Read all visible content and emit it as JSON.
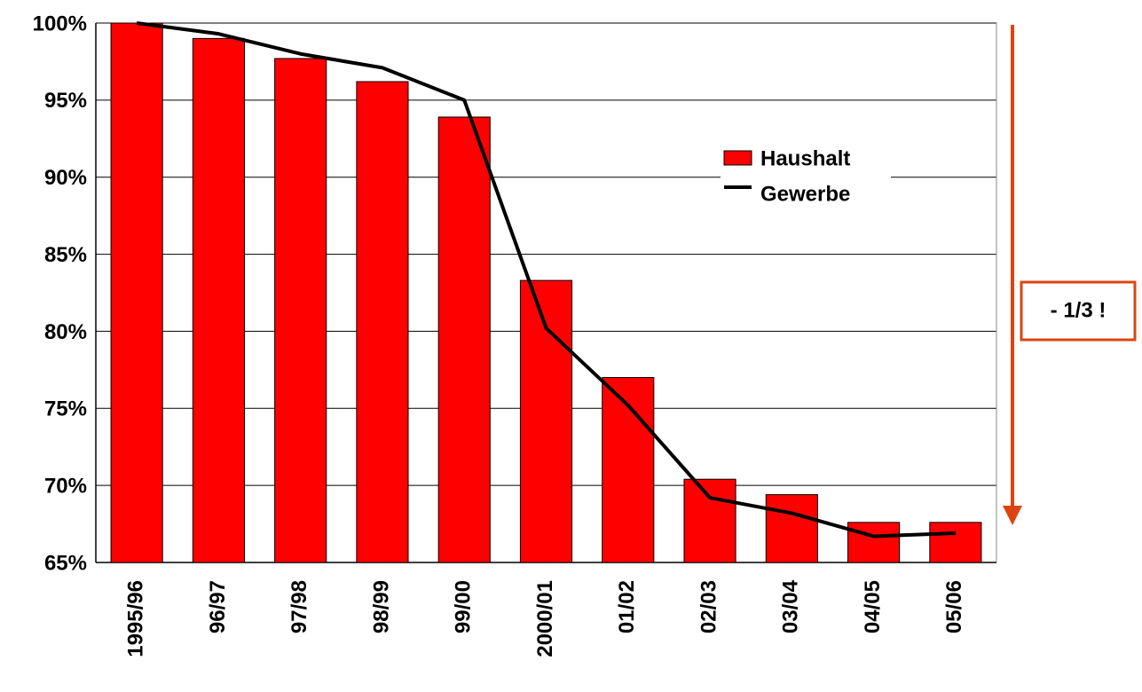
{
  "chart_data": {
    "type": "bar_line",
    "categories": [
      "1995/96",
      "96/97",
      "97/98",
      "98/99",
      "99/00",
      "2000/01",
      "01/02",
      "02/03",
      "03/04",
      "04/05",
      "05/06"
    ],
    "series": [
      {
        "name": "Haushalt",
        "type": "bar",
        "color": "#ff0000",
        "values": [
          100,
          99.0,
          97.7,
          96.2,
          93.9,
          83.3,
          77.0,
          70.4,
          69.4,
          67.6,
          67.6
        ]
      },
      {
        "name": "Gewerbe",
        "type": "line",
        "color": "#000000",
        "values": [
          100,
          99.3,
          98.0,
          97.1,
          95.0,
          80.2,
          75.2,
          69.2,
          68.2,
          66.7,
          66.9
        ]
      }
    ],
    "ylim": [
      65,
      100
    ],
    "yticks": [
      {
        "value": 65,
        "label": "65%"
      },
      {
        "value": 70,
        "label": "70%"
      },
      {
        "value": 75,
        "label": "75%"
      },
      {
        "value": 80,
        "label": "80%"
      },
      {
        "value": 85,
        "label": "85%"
      },
      {
        "value": 90,
        "label": "90%"
      },
      {
        "value": 95,
        "label": "95%"
      },
      {
        "value": 100,
        "label": "100%"
      }
    ],
    "grid": true,
    "legend": "upper right",
    "annotation": {
      "text": "- 1/3 !",
      "color": "#dd4411"
    }
  }
}
